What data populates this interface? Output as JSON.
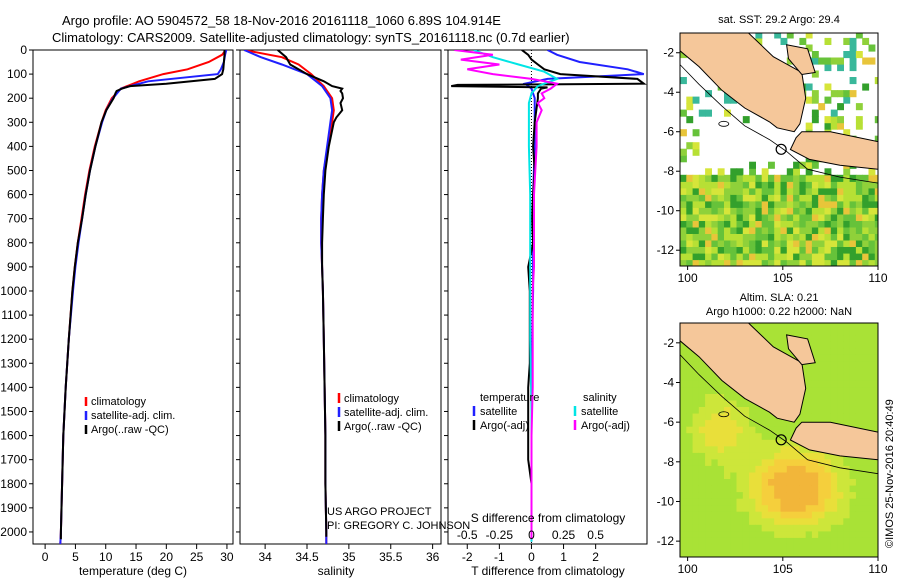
{
  "header": {
    "line1": "Argo profile: AO 5904572_58 18-Nov-2016 20161118_1060 6.89S 104.914E",
    "line2": "Climatology: CARS2009. Satellite-adjusted climatology: synTS_20161118.nc (0.7d earlier)"
  },
  "colors": {
    "climatology": "#ff0000",
    "satellite": "#2020ff",
    "argo": "#000000",
    "argo_diff_s": "#ff00ff",
    "sat_diff_s": "#00e5e5"
  },
  "chart_data": [
    {
      "type": "line",
      "id": "temperature",
      "xlabel": "temperature (deg C)",
      "ylabel": "",
      "xlim": [
        -2,
        31
      ],
      "ylim": [
        2050,
        0
      ],
      "xticks": [
        0,
        5,
        10,
        15,
        20,
        25,
        30
      ],
      "yticks": [
        0,
        100,
        200,
        300,
        400,
        500,
        600,
        700,
        800,
        900,
        1000,
        1100,
        1200,
        1300,
        1400,
        1500,
        1600,
        1700,
        1800,
        1900,
        2000
      ],
      "legend": [
        "climatology",
        "satellite-adj. clim.",
        "Argo(..raw -QC)"
      ],
      "series": [
        {
          "name": "climatology",
          "depth": [
            0,
            20,
            50,
            80,
            100,
            130,
            160,
            200,
            250,
            300,
            400,
            500,
            600,
            700,
            800,
            900,
            1000,
            1200,
            1400,
            1600,
            1800,
            2000,
            2050
          ],
          "values": [
            29.8,
            29.2,
            27,
            23.5,
            19.5,
            15.5,
            12.5,
            11,
            10,
            9.3,
            8.2,
            7.3,
            6.6,
            6,
            5.4,
            4.9,
            4.5,
            3.9,
            3.4,
            3,
            2.8,
            2.6,
            2.5
          ]
        },
        {
          "name": "satellite-adj. clim.",
          "depth": [
            0,
            20,
            50,
            80,
            100,
            130,
            160,
            200,
            250,
            300,
            400,
            500,
            600,
            700,
            800,
            900,
            1000,
            1200,
            1400,
            1600,
            1800,
            2000,
            2050
          ],
          "values": [
            29.9,
            29.7,
            29.5,
            29,
            28.5,
            17,
            12.5,
            11.2,
            10.1,
            9.4,
            8.3,
            7.4,
            6.7,
            6.1,
            5.5,
            5,
            4.6,
            3.9,
            3.4,
            3,
            2.8,
            2.6,
            2.5
          ]
        },
        {
          "name": "Argo(..raw -QC)",
          "depth": [
            0,
            20,
            50,
            80,
            100,
            120,
            140,
            150,
            160,
            170,
            180,
            200,
            250,
            300,
            350,
            400,
            500,
            600,
            700,
            800,
            900,
            1000,
            1100,
            1200,
            1400,
            1600,
            1800,
            2000,
            2030
          ],
          "values": [
            29.6,
            29.6,
            29.5,
            29.4,
            29.2,
            28,
            20,
            14,
            12.7,
            11.8,
            11.6,
            11.3,
            10.1,
            9.3,
            8.8,
            8.3,
            7.4,
            6.7,
            6.1,
            5.4,
            4.9,
            4.5,
            4.2,
            3.9,
            3.4,
            3,
            2.8,
            2.6,
            2.6
          ]
        }
      ]
    },
    {
      "type": "line",
      "id": "salinity",
      "xlabel": "salinity",
      "xlim": [
        33.7,
        36.1
      ],
      "xticks": [
        34,
        34.5,
        35,
        35.5,
        36
      ],
      "ylim": [
        2050,
        0
      ],
      "legend": [
        "climatology",
        "satellite-adj. clim.",
        "Argo(..raw -QC)"
      ],
      "annotation": [
        "US ARGO PROJECT",
        "PI: GREGORY C. JOHNSON"
      ],
      "series": [
        {
          "name": "climatology",
          "depth": [
            0,
            30,
            60,
            100,
            150,
            200,
            250,
            300,
            400,
            500,
            600,
            700,
            800,
            900,
            1000,
            1200,
            1400,
            1600,
            1800,
            2000,
            2050
          ],
          "values": [
            33.75,
            34.2,
            34.4,
            34.55,
            34.7,
            34.8,
            34.82,
            34.8,
            34.75,
            34.7,
            34.68,
            34.67,
            34.67,
            34.68,
            34.69,
            34.7,
            34.71,
            34.72,
            34.72,
            34.73,
            34.73
          ]
        },
        {
          "name": "satellite-adj. clim.",
          "depth": [
            0,
            30,
            60,
            100,
            150,
            200,
            250,
            300,
            400,
            500,
            600,
            700,
            800,
            900,
            1000,
            1200,
            1400,
            1600,
            1800,
            2000,
            2050
          ],
          "values": [
            33.75,
            33.95,
            34.2,
            34.5,
            34.68,
            34.78,
            34.8,
            34.78,
            34.74,
            34.7,
            34.68,
            34.67,
            34.67,
            34.68,
            34.69,
            34.7,
            34.71,
            34.72,
            34.72,
            34.73,
            34.73
          ]
        },
        {
          "name": "Argo(..raw -QC)",
          "depth": [
            0,
            30,
            60,
            100,
            130,
            150,
            160,
            170,
            180,
            200,
            220,
            250,
            280,
            300,
            400,
            500,
            600,
            700,
            800,
            900,
            1000,
            1200,
            1400,
            1600,
            1800,
            2000,
            2020
          ],
          "values": [
            34.15,
            34.25,
            34.3,
            34.5,
            34.7,
            34.8,
            34.92,
            34.9,
            34.92,
            34.93,
            34.9,
            34.92,
            34.85,
            34.82,
            34.76,
            34.72,
            34.7,
            34.69,
            34.68,
            34.68,
            34.69,
            34.7,
            34.71,
            34.72,
            34.72,
            34.73,
            34.73
          ]
        }
      ]
    },
    {
      "type": "line",
      "id": "difference",
      "xlabel": "T difference from climatology",
      "xlabel_top": "S difference from climatology",
      "xlim": [
        -2.6,
        3.6
      ],
      "xticks": [
        -2,
        -1,
        0,
        1,
        2
      ],
      "xticks_s": [
        -0.5,
        -0.25,
        0,
        0.25,
        0.5
      ],
      "ylim": [
        2050,
        0
      ],
      "legend_temperature_title": "temperature",
      "legend_salinity_title": "salinity",
      "legend": [
        "satellite",
        "Argo(-adj)",
        "satellite",
        "Argo(-adj)"
      ],
      "series": [
        {
          "name": "T satellite",
          "var": "T",
          "depth": [
            0,
            20,
            50,
            80,
            100,
            120,
            140,
            160,
            200,
            300,
            400,
            600,
            800,
            1000,
            1200,
            1500,
            1800,
            2000,
            2040
          ],
          "values": [
            0.5,
            0.8,
            1.5,
            3,
            3.5,
            0.5,
            -0.2,
            0,
            0.1,
            0.1,
            0.1,
            0.05,
            0.05,
            0.05,
            0.02,
            0,
            0,
            0,
            0
          ]
        },
        {
          "name": "T Argo(-adj)",
          "var": "T",
          "depth": [
            0,
            20,
            40,
            60,
            80,
            100,
            120,
            140,
            145,
            150,
            155,
            160,
            170,
            180,
            200,
            250,
            300,
            400,
            500,
            600,
            700,
            800,
            900,
            1000,
            1050,
            1100,
            1200,
            1300,
            1400,
            1500,
            1600,
            1700,
            1800,
            1900,
            2000,
            2030
          ],
          "values": [
            -0.3,
            -0.1,
            0,
            0.2,
            0.4,
            0.9,
            3.3,
            3.5,
            -2.3,
            -2.5,
            0.5,
            0.3,
            0.25,
            0.2,
            0.2,
            0.15,
            0.1,
            0.05,
            0.1,
            0.05,
            0.02,
            0.05,
            -0.1,
            -0.05,
            -0.05,
            -0.05,
            -0.05,
            -0.05,
            -0.1,
            -0.1,
            -0.1,
            -0.1,
            0,
            0,
            0,
            0
          ]
        },
        {
          "name": "S satellite",
          "var": "S",
          "depth": [
            0,
            30,
            60,
            90,
            120,
            150,
            180,
            220,
            300,
            400,
            600,
            800,
            1000,
            1200,
            1500,
            1800,
            2000,
            2040
          ],
          "values": [
            -0.45,
            -0.3,
            -0.1,
            0.1,
            0.2,
            0.05,
            0,
            -0.02,
            -0.02,
            -0.02,
            -0.01,
            -0.01,
            -0.01,
            -0.01,
            0,
            0,
            0,
            0
          ]
        },
        {
          "name": "S Argo(-adj)",
          "var": "S",
          "depth": [
            0,
            20,
            40,
            60,
            80,
            100,
            120,
            140,
            160,
            180,
            200,
            220,
            250,
            300,
            400,
            500,
            600,
            700,
            800,
            900,
            1000,
            1200,
            1400,
            1600,
            1800,
            2000,
            2030
          ],
          "values": [
            -0.6,
            -0.3,
            -0.55,
            -0.25,
            -0.5,
            -0.3,
            0,
            0.2,
            0.15,
            0.08,
            0.1,
            0.05,
            0.08,
            0.04,
            0.04,
            0.03,
            0.02,
            0.02,
            0.02,
            0.02,
            0.01,
            0.01,
            0.01,
            0,
            0,
            0,
            0
          ]
        }
      ]
    },
    {
      "type": "heatmap",
      "id": "sst-map",
      "title": "sat. SST: 29.2 Argo: 29.4",
      "xlim": [
        99.6,
        110
      ],
      "ylim": [
        -12.8,
        -1
      ],
      "xticks": [
        100,
        105,
        110
      ],
      "yticks": [
        -2,
        -4,
        -6,
        -8,
        -10,
        -12
      ],
      "marker": [
        104.914,
        -6.89
      ]
    },
    {
      "type": "heatmap",
      "id": "sla-map",
      "title_line1": "Altim. SLA: 0.21",
      "title_line2": "Argo h1000: 0.22 h2000: NaN",
      "xlim": [
        99.6,
        110
      ],
      "ylim": [
        -12.8,
        -1
      ],
      "xticks": [
        100,
        105,
        110
      ],
      "yticks": [
        -2,
        -4,
        -6,
        -8,
        -10,
        -12
      ],
      "marker": [
        104.914,
        -6.89
      ]
    }
  ],
  "credit": "©IMOS 25-Nov-2016 20:40:49"
}
